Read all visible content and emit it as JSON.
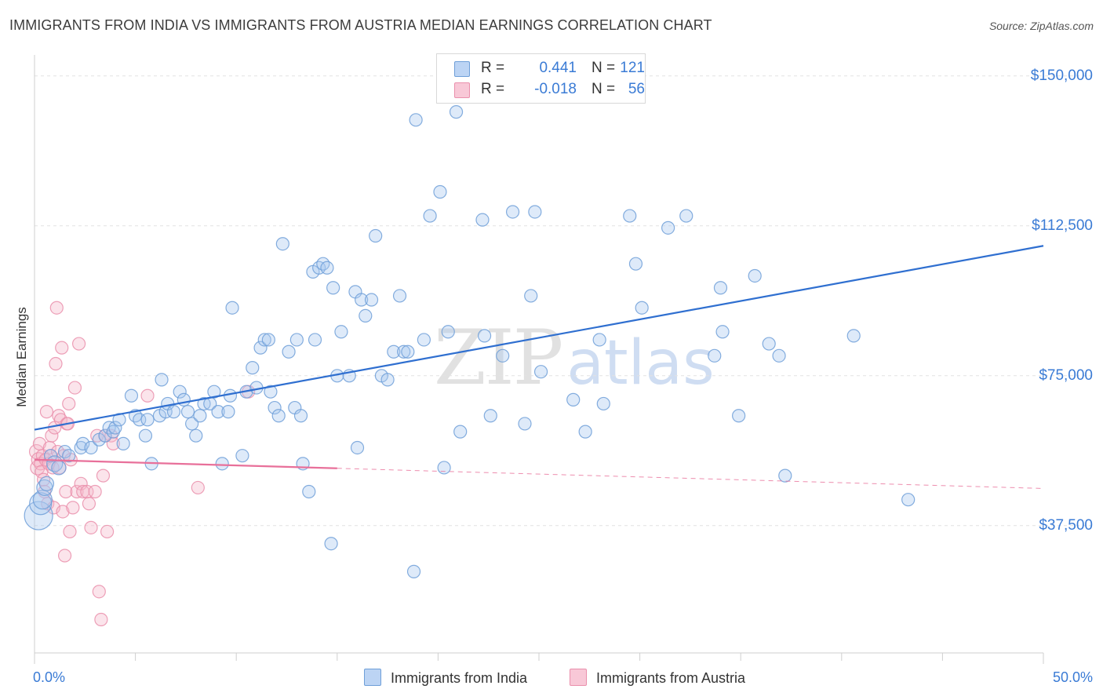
{
  "header": {
    "title": "IMMIGRANTS FROM INDIA VS IMMIGRANTS FROM AUSTRIA MEDIAN EARNINGS CORRELATION CHART",
    "source": "Source: ZipAtlas.com"
  },
  "watermark": {
    "zip": "ZIP",
    "atlas": "atlas"
  },
  "legend": {
    "r_label": "R =",
    "n_label": "N =",
    "india": {
      "r": "0.441",
      "n": "121"
    },
    "austria": {
      "r": "-0.018",
      "n": "56"
    }
  },
  "bottom_legend": {
    "india_label": "Immigrants from India",
    "austria_label": "Immigrants from Austria"
  },
  "colors": {
    "india_fill": "#a8c8f0",
    "india_stroke": "#6f9fd8",
    "india_line": "#2f6fd0",
    "austria_fill": "#f5b8cb",
    "austria_stroke": "#ea8fac",
    "austria_line": "#e8709a",
    "grid": "#e2e2e2",
    "tick_text": "#3a7bd5"
  },
  "chart_data": {
    "type": "scatter",
    "title": "IMMIGRANTS FROM INDIA VS IMMIGRANTS FROM AUSTRIA MEDIAN EARNINGS CORRELATION CHART",
    "xlabel": "",
    "ylabel": "Median Earnings",
    "xlim": [
      0,
      50
    ],
    "ylim": [
      0,
      155000
    ],
    "x_tick_labels": {
      "left": "0.0%",
      "right": "50.0%"
    },
    "y_ticks": [
      {
        "value": 37500,
        "label": "$37,500"
      },
      {
        "value": 75000,
        "label": "$75,000"
      },
      {
        "value": 112500,
        "label": "$112,500"
      },
      {
        "value": 150000,
        "label": "$150,000"
      }
    ],
    "grid": true,
    "legend_position": "top-center",
    "series": [
      {
        "name": "Immigrants from India",
        "color": "#6f9fd8",
        "r": 0.441,
        "n": 121,
        "trend": {
          "x0": 0,
          "y0": 61500,
          "x1": 50,
          "y1": 107500,
          "dashed_from": null
        },
        "points": [
          [
            0.2,
            40000,
            18
          ],
          [
            0.3,
            43000,
            14
          ],
          [
            0.4,
            44000,
            12
          ],
          [
            0.5,
            47000,
            10
          ],
          [
            0.6,
            48000,
            9
          ],
          [
            0.8,
            55000,
            8
          ],
          [
            1.0,
            53000,
            10
          ],
          [
            1.2,
            52000,
            9
          ],
          [
            1.5,
            56000,
            8
          ],
          [
            1.7,
            55000,
            8
          ],
          [
            2.3,
            57000,
            8
          ],
          [
            2.4,
            58000,
            8
          ],
          [
            2.8,
            57000,
            8
          ],
          [
            3.2,
            59000,
            8
          ],
          [
            3.5,
            60000,
            8
          ],
          [
            3.7,
            62000,
            8
          ],
          [
            3.9,
            61000,
            8
          ],
          [
            4.0,
            62000,
            8
          ],
          [
            4.2,
            64000,
            8
          ],
          [
            4.4,
            58000,
            8
          ],
          [
            4.8,
            70000,
            8
          ],
          [
            5.0,
            65000,
            8
          ],
          [
            5.2,
            64000,
            8
          ],
          [
            5.5,
            60000,
            8
          ],
          [
            5.6,
            64000,
            8
          ],
          [
            5.8,
            53000,
            8
          ],
          [
            6.2,
            65000,
            8
          ],
          [
            6.3,
            74000,
            8
          ],
          [
            6.5,
            66000,
            8
          ],
          [
            6.6,
            68000,
            8
          ],
          [
            6.9,
            66000,
            8
          ],
          [
            7.2,
            71000,
            8
          ],
          [
            7.4,
            69000,
            8
          ],
          [
            7.6,
            66000,
            8
          ],
          [
            7.8,
            63000,
            8
          ],
          [
            8.0,
            60000,
            8
          ],
          [
            8.2,
            65000,
            8
          ],
          [
            8.4,
            68000,
            8
          ],
          [
            8.7,
            68000,
            8
          ],
          [
            8.9,
            71000,
            8
          ],
          [
            9.1,
            66000,
            8
          ],
          [
            9.3,
            53000,
            8
          ],
          [
            9.6,
            66000,
            8
          ],
          [
            9.7,
            70000,
            8
          ],
          [
            9.8,
            92000,
            8
          ],
          [
            10.3,
            55000,
            8
          ],
          [
            10.5,
            71000,
            8
          ],
          [
            10.8,
            77000,
            8
          ],
          [
            11.0,
            72000,
            8
          ],
          [
            11.2,
            82000,
            8
          ],
          [
            11.4,
            84000,
            8
          ],
          [
            11.6,
            84000,
            8
          ],
          [
            11.7,
            71000,
            8
          ],
          [
            11.9,
            67000,
            8
          ],
          [
            12.1,
            65000,
            8
          ],
          [
            12.3,
            108000,
            8
          ],
          [
            12.6,
            81000,
            8
          ],
          [
            12.9,
            67000,
            8
          ],
          [
            13.0,
            84000,
            8
          ],
          [
            13.2,
            65000,
            8
          ],
          [
            13.3,
            53000,
            8
          ],
          [
            13.6,
            46000,
            8
          ],
          [
            13.8,
            101000,
            8
          ],
          [
            13.9,
            84000,
            8
          ],
          [
            14.1,
            102000,
            8
          ],
          [
            14.3,
            103000,
            8
          ],
          [
            14.5,
            102000,
            8
          ],
          [
            14.7,
            33000,
            8
          ],
          [
            14.8,
            97000,
            8
          ],
          [
            15.0,
            75000,
            8
          ],
          [
            15.2,
            86000,
            8
          ],
          [
            15.6,
            75000,
            8
          ],
          [
            15.9,
            96000,
            8
          ],
          [
            16.0,
            57000,
            8
          ],
          [
            16.2,
            94000,
            8
          ],
          [
            16.4,
            90000,
            8
          ],
          [
            16.7,
            94000,
            8
          ],
          [
            16.9,
            110000,
            8
          ],
          [
            17.2,
            75000,
            8
          ],
          [
            17.5,
            74000,
            8
          ],
          [
            17.8,
            81000,
            8
          ],
          [
            18.1,
            95000,
            8
          ],
          [
            18.3,
            81000,
            8
          ],
          [
            18.5,
            81000,
            8
          ],
          [
            18.8,
            26000,
            8
          ],
          [
            18.9,
            139000,
            8
          ],
          [
            19.3,
            84000,
            8
          ],
          [
            19.6,
            115000,
            8
          ],
          [
            20.1,
            121000,
            8
          ],
          [
            20.3,
            52000,
            8
          ],
          [
            20.5,
            86000,
            8
          ],
          [
            20.9,
            141000,
            8
          ],
          [
            21.1,
            61000,
            8
          ],
          [
            22.2,
            114000,
            8
          ],
          [
            22.3,
            85000,
            8
          ],
          [
            22.6,
            65000,
            8
          ],
          [
            23.2,
            80000,
            8
          ],
          [
            23.7,
            116000,
            8
          ],
          [
            24.3,
            63000,
            8
          ],
          [
            24.6,
            95000,
            8
          ],
          [
            24.8,
            116000,
            8
          ],
          [
            25.1,
            76000,
            8
          ],
          [
            26.7,
            69000,
            8
          ],
          [
            27.3,
            61000,
            8
          ],
          [
            28.0,
            84000,
            8
          ],
          [
            28.2,
            68000,
            8
          ],
          [
            29.5,
            115000,
            8
          ],
          [
            29.8,
            103000,
            8
          ],
          [
            30.1,
            92000,
            8
          ],
          [
            31.4,
            112000,
            8
          ],
          [
            32.3,
            115000,
            8
          ],
          [
            33.7,
            80000,
            8
          ],
          [
            34.0,
            97000,
            8
          ],
          [
            34.1,
            86000,
            8
          ],
          [
            34.9,
            65000,
            8
          ],
          [
            35.7,
            100000,
            8
          ],
          [
            36.4,
            83000,
            8
          ],
          [
            36.9,
            80000,
            8
          ],
          [
            37.2,
            50000,
            8
          ],
          [
            40.6,
            85000,
            8
          ],
          [
            43.3,
            44000,
            8
          ]
        ]
      },
      {
        "name": "Immigrants from Austria",
        "color": "#ea8fac",
        "r": -0.018,
        "n": 56,
        "trend": {
          "x0": 0,
          "y0": 54000,
          "x1": 50,
          "y1": 46800,
          "dashed_from": 15
        },
        "points": [
          [
            0.1,
            56000,
            9
          ],
          [
            0.15,
            52000,
            9
          ],
          [
            0.2,
            54000,
            9
          ],
          [
            0.25,
            58000,
            8
          ],
          [
            0.3,
            53000,
            8
          ],
          [
            0.35,
            51000,
            8
          ],
          [
            0.4,
            55000,
            8
          ],
          [
            0.45,
            49000,
            8
          ],
          [
            0.5,
            46000,
            8
          ],
          [
            0.55,
            54000,
            8
          ],
          [
            0.6,
            66000,
            8
          ],
          [
            0.65,
            43000,
            8
          ],
          [
            0.7,
            53000,
            8
          ],
          [
            0.75,
            57000,
            8
          ],
          [
            0.8,
            55000,
            8
          ],
          [
            0.85,
            60000,
            8
          ],
          [
            0.9,
            52000,
            8
          ],
          [
            0.95,
            42000,
            8
          ],
          [
            1.0,
            62000,
            8
          ],
          [
            1.05,
            78000,
            8
          ],
          [
            1.1,
            92000,
            8
          ],
          [
            1.15,
            56000,
            8
          ],
          [
            1.2,
            65000,
            8
          ],
          [
            1.25,
            52000,
            8
          ],
          [
            1.3,
            64000,
            8
          ],
          [
            1.35,
            82000,
            8
          ],
          [
            1.4,
            41000,
            8
          ],
          [
            1.45,
            55000,
            8
          ],
          [
            1.5,
            30000,
            8
          ],
          [
            1.55,
            46000,
            8
          ],
          [
            1.6,
            63000,
            8
          ],
          [
            1.65,
            63000,
            8
          ],
          [
            1.7,
            68000,
            8
          ],
          [
            1.75,
            36000,
            8
          ],
          [
            1.8,
            54000,
            8
          ],
          [
            1.9,
            42000,
            8
          ],
          [
            2.0,
            72000,
            8
          ],
          [
            2.1,
            46000,
            8
          ],
          [
            2.2,
            83000,
            8
          ],
          [
            2.3,
            48000,
            8
          ],
          [
            2.4,
            46000,
            8
          ],
          [
            2.6,
            46000,
            8
          ],
          [
            2.7,
            43000,
            8
          ],
          [
            2.8,
            37000,
            8
          ],
          [
            3.0,
            46000,
            8
          ],
          [
            3.1,
            60000,
            8
          ],
          [
            3.2,
            21000,
            8
          ],
          [
            3.3,
            14000,
            8
          ],
          [
            3.4,
            50000,
            8
          ],
          [
            3.5,
            60000,
            8
          ],
          [
            3.6,
            36000,
            8
          ],
          [
            3.8,
            60000,
            8
          ],
          [
            3.9,
            58000,
            8
          ],
          [
            5.6,
            70000,
            8
          ],
          [
            8.1,
            47000,
            8
          ],
          [
            10.6,
            71000,
            8
          ]
        ]
      }
    ]
  }
}
